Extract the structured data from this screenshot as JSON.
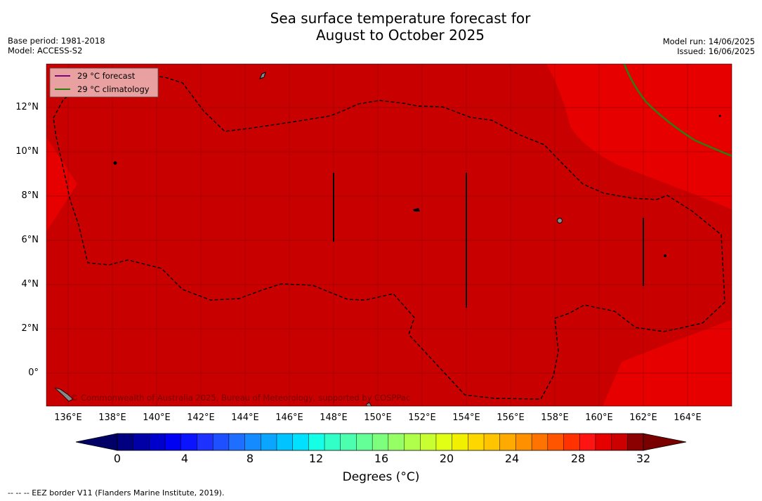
{
  "title_line1": "Sea surface temperature forecast for",
  "title_line2": "August to October 2025",
  "meta_left": [
    "Base period: 1981-2018",
    "Model: ACCESS-S2"
  ],
  "meta_right": [
    "Model run: 14/06/2025",
    "Issued: 16/06/2025"
  ],
  "legend": [
    {
      "label": "29 °C  forecast",
      "color": "#800080"
    },
    {
      "label": "29 °C  climatology",
      "color": "#2e7d11"
    }
  ],
  "watermark": "© Commonwealth of Australia 2025, Bureau of Meteorology, supported by COSPPac",
  "lat_labels": [
    "12°N",
    "10°N",
    "8°N",
    "6°N",
    "4°N",
    "2°N",
    "0°"
  ],
  "lon_labels": [
    "136°E",
    "138°E",
    "140°E",
    "142°E",
    "144°E",
    "146°E",
    "148°E",
    "150°E",
    "152°E",
    "154°E",
    "156°E",
    "158°E",
    "160°E",
    "162°E",
    "164°E"
  ],
  "colorbar": {
    "ticks": [
      "0",
      "4",
      "8",
      "12",
      "16",
      "20",
      "24",
      "28",
      "32"
    ],
    "label": "Degrees (°C)",
    "colors": [
      "#000080",
      "#0000a6",
      "#0000cc",
      "#0000f2",
      "#0a14ff",
      "#1e32ff",
      "#1e50ff",
      "#1e6eff",
      "#148cff",
      "#0aa5ff",
      "#00c3ff",
      "#00e1ff",
      "#14ffe6",
      "#32ffc8",
      "#4bffaf",
      "#64ff96",
      "#7dff7d",
      "#96ff64",
      "#afff4b",
      "#c8ff32",
      "#e1ff14",
      "#f0f000",
      "#ffd700",
      "#ffc300",
      "#ffaa00",
      "#ff9100",
      "#ff7300",
      "#ff5500",
      "#ff3200",
      "#ff1414",
      "#e60000",
      "#cc0000",
      "#8b0000"
    ],
    "under_color": "#000066",
    "over_color": "#7a0000"
  },
  "map_colors": {
    "sst_30": "#c80000",
    "sst_29": "#e60000",
    "border": "#000000",
    "grid": "#a00000"
  },
  "footnote": "--  --  -- EEZ border V11 (Flanders Marine Institute, 2019)."
}
